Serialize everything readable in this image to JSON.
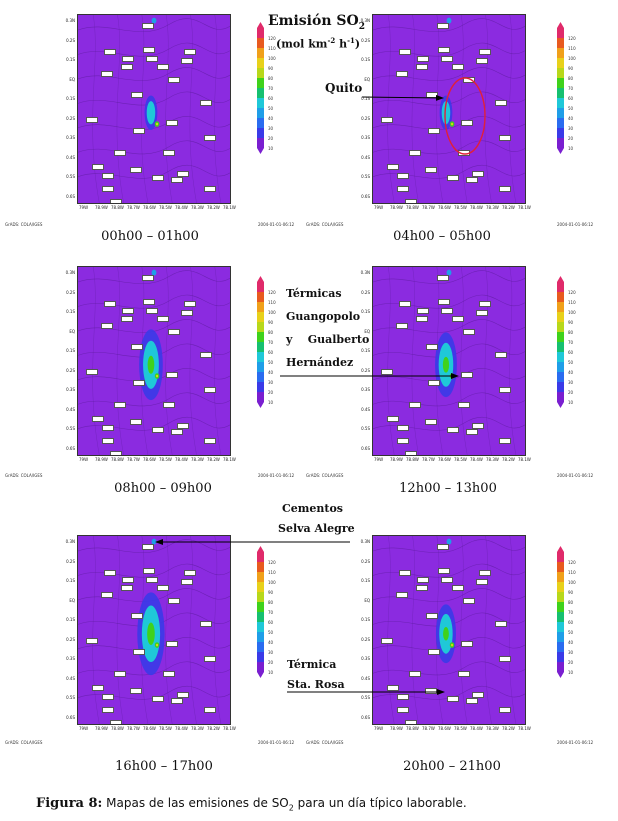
{
  "panels": [
    {
      "time": "00h00 – 01h00",
      "date": "2004-01-01-06:12"
    },
    {
      "time": "04h00 – 05h00",
      "date": "2004-01-01-06:12"
    },
    {
      "time": "08h00 – 09h00",
      "date": "2004-01-01-06:12"
    },
    {
      "time": "12h00 – 13h00",
      "date": "2004-01-01-06:12"
    },
    {
      "time": "16h00 – 17h00",
      "date": "2004-01-01-06:12"
    },
    {
      "time": "20h00 – 21h00",
      "date": "2004-01-01-06:12"
    }
  ],
  "grads_label": "GrADS: COLA/IGES",
  "y_ticks": [
    "0.3N",
    "0.2S",
    "0.1S",
    "EQ",
    "0.1S",
    "0.2S",
    "0.3S",
    "0.4S",
    "0.5S",
    "0.6S"
  ],
  "x_ticks": [
    "79W",
    "78.9W",
    "78.8W",
    "78.7W",
    "78.6W",
    "78.5W",
    "78.4W",
    "78.3W",
    "78.2W",
    "78.1W"
  ],
  "colorbar_labels": [
    "10",
    "20",
    "30",
    "40",
    "50",
    "60",
    "70",
    "80",
    "90",
    "100",
    "110",
    "120"
  ],
  "colorbar_colors": [
    "#7a1fd0",
    "#3a3ae8",
    "#2a6cf0",
    "#1f9ee8",
    "#1fc8d8",
    "#16c070",
    "#3fd21b",
    "#b8d81a",
    "#e8d11a",
    "#f0a01a",
    "#e85a1f",
    "#e02a6a"
  ],
  "annotations": {
    "emission_title": "Emisión SO",
    "emission_sub": "2",
    "emission_units_a": "(mol km",
    "emission_units_b": "-2",
    "emission_units_c": " h",
    "emission_units_d": "-1",
    "emission_units_e": ")",
    "quito": "Quito",
    "termicas_1": "Térmicas",
    "termicas_2": "Guangopolo",
    "termicas_3": "y    Gualberto",
    "termicas_4": "Hernández",
    "cementos_1": "Cementos",
    "cementos_2": "Selva Alegre",
    "termica_1": "Térmica",
    "termica_2": "Sta. Rosa"
  },
  "figure_caption": {
    "label": "Figura 8:",
    "text_a": " Mapas de las emisiones de SO",
    "text_sub": "2",
    "text_b": " para un día típico laborable."
  },
  "colors": {
    "background_map": "#8b2be0",
    "arrow": "#000000",
    "quito_circle": "#e0203a"
  }
}
